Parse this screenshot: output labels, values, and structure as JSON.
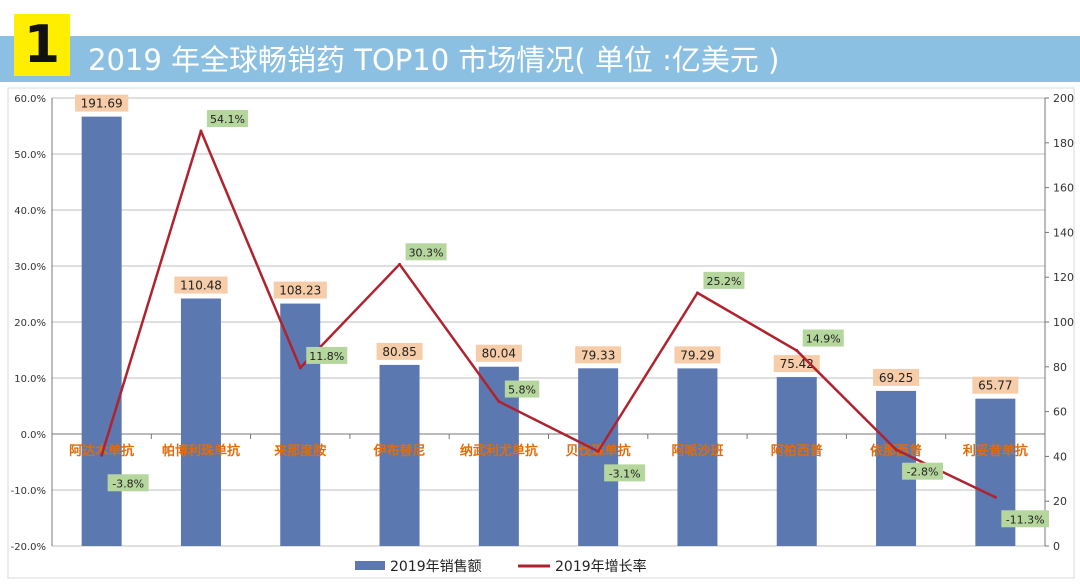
{
  "header": {
    "badge": "1",
    "title": "2019 年全球畅销药 TOP10 市场情况( 单位 :亿美元 )"
  },
  "chart_data": {
    "type": "bar",
    "title": "2019 年全球畅销药 TOP10 市场情况( 单位 :亿美元 )",
    "categories": [
      "阿达木单抗",
      "帕博利珠单抗",
      "来那度胺",
      "伊布替尼",
      "纳武利尤单抗",
      "贝伐珠单抗",
      "阿哌沙班",
      "阿柏西普",
      "依那西普",
      "利妥昔单抗"
    ],
    "series": [
      {
        "name": "2019年销售额",
        "type": "bar",
        "axis": "right",
        "values": [
          191.69,
          110.48,
          108.23,
          80.85,
          80.04,
          79.33,
          79.29,
          75.42,
          69.25,
          65.77
        ],
        "labels": [
          "191.69",
          "110.48",
          "108.23",
          "80.85",
          "80.04",
          "79.33",
          "79.29",
          "75.42",
          "69.25",
          "65.77"
        ],
        "color": "#5b78b0"
      },
      {
        "name": "2019年增长率",
        "type": "line",
        "axis": "left",
        "values": [
          -3.8,
          54.1,
          11.8,
          30.3,
          5.8,
          -3.1,
          25.2,
          14.9,
          -2.8,
          -11.3
        ],
        "labels": [
          "-3.8%",
          "54.1%",
          "11.8%",
          "30.3%",
          "5.8%",
          "-3.1%",
          "25.2%",
          "14.9%",
          "-2.8%",
          "-11.3%"
        ],
        "color": "#b0232e"
      }
    ],
    "left_axis": {
      "range": [
        -20,
        60
      ],
      "ticks": [
        "60.0%",
        "50.0%",
        "40.0%",
        "30.0%",
        "20.0%",
        "10.0%",
        "0.0%",
        "-10.0%",
        "-20.0%"
      ]
    },
    "right_axis": {
      "range": [
        0,
        200
      ],
      "ticks": [
        "200",
        "180",
        "160",
        "140",
        "120",
        "100",
        "80",
        "60",
        "40",
        "20",
        "0"
      ]
    },
    "legend": [
      "2019年销售额",
      "2019年增长率"
    ],
    "legend_position": "bottom",
    "grid": true
  },
  "colors": {
    "title_bar": "#8cc0e3",
    "badge": "#ffee00",
    "bar": "#5b78b0",
    "line": "#b0232e",
    "bar_label_bg": "#f6cda8",
    "line_label_bg": "#b5d69d",
    "category_text": "#e36c0a"
  }
}
